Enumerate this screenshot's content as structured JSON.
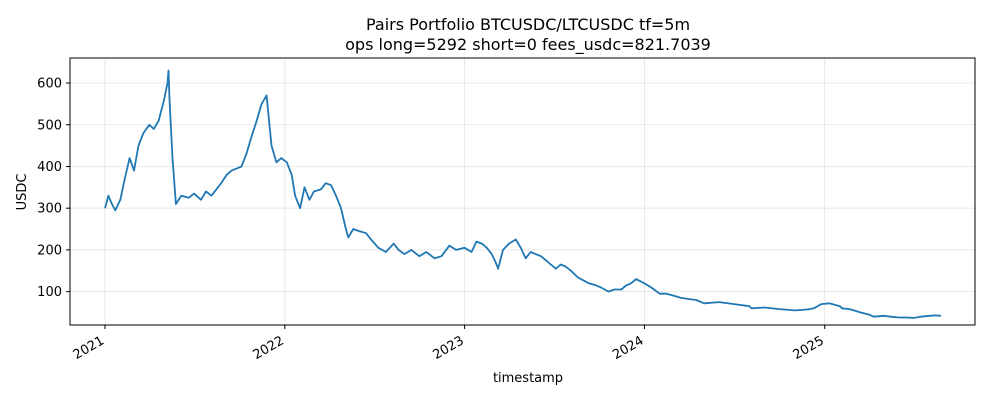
{
  "chart_data": {
    "type": "line",
    "title": "Pairs Portfolio BTCUSDC/LTCUSDC tf=5m",
    "subtitle": "ops long=5292 short=0 fees_usdc=821.7039",
    "xlabel": "timestamp",
    "ylabel": "USDC",
    "x_ticks": [
      "2021",
      "2022",
      "2023",
      "2024",
      "2025"
    ],
    "y_ticks": [
      100,
      200,
      300,
      400,
      500,
      600
    ],
    "xlim": [
      "2020-10-22",
      "2025-11-02"
    ],
    "ylim": [
      20,
      660
    ],
    "grid": true,
    "line_color": "#1f77b4",
    "series": [
      {
        "x": [
          "2021-01-01",
          "2021-01-08",
          "2021-01-15",
          "2021-01-22",
          "2021-02-01",
          "2021-02-10",
          "2021-02-20",
          "2021-03-01",
          "2021-03-10",
          "2021-03-20",
          "2021-04-01",
          "2021-04-10",
          "2021-04-20",
          "2021-05-01",
          "2021-05-08",
          "2021-05-10",
          "2021-05-12",
          "2021-05-18",
          "2021-05-25",
          "2021-06-05",
          "2021-06-20",
          "2021-07-01",
          "2021-07-15",
          "2021-07-25",
          "2021-08-05",
          "2021-08-15",
          "2021-08-25",
          "2021-09-05",
          "2021-09-15",
          "2021-09-25",
          "2021-10-05",
          "2021-10-15",
          "2021-10-25",
          "2021-11-05",
          "2021-11-15",
          "2021-11-25",
          "2021-12-05",
          "2021-12-15",
          "2021-12-25",
          "2022-01-05",
          "2022-01-15",
          "2022-01-22",
          "2022-02-01",
          "2022-02-10",
          "2022-02-20",
          "2022-03-01",
          "2022-03-15",
          "2022-03-25",
          "2022-04-05",
          "2022-04-15",
          "2022-04-25",
          "2022-05-05",
          "2022-05-10",
          "2022-05-20",
          "2022-06-01",
          "2022-06-15",
          "2022-06-25",
          "2022-07-10",
          "2022-07-25",
          "2022-08-10",
          "2022-08-20",
          "2022-09-01",
          "2022-09-15",
          "2022-10-01",
          "2022-10-15",
          "2022-11-01",
          "2022-11-15",
          "2022-12-01",
          "2022-12-15",
          "2023-01-01",
          "2023-01-15",
          "2023-01-25",
          "2023-02-05",
          "2023-02-15",
          "2023-02-25",
          "2023-03-05",
          "2023-03-10",
          "2023-03-20",
          "2023-04-01",
          "2023-04-15",
          "2023-04-25",
          "2023-05-05",
          "2023-05-15",
          "2023-05-25",
          "2023-06-05",
          "2023-06-15",
          "2023-06-25",
          "2023-07-05",
          "2023-07-15",
          "2023-07-25",
          "2023-08-05",
          "2023-08-18",
          "2023-08-25",
          "2023-09-10",
          "2023-09-25",
          "2023-10-05",
          "2023-10-20",
          "2023-11-01",
          "2023-11-15",
          "2023-11-25",
          "2023-12-05",
          "2023-12-15",
          "2024-01-01",
          "2024-01-15",
          "2024-02-01",
          "2024-02-15",
          "2024-03-01",
          "2024-03-15",
          "2024-04-01",
          "2024-04-15",
          "2024-05-01",
          "2024-06-01",
          "2024-07-01",
          "2024-08-01",
          "2024-08-05",
          "2024-09-01",
          "2024-10-01",
          "2024-11-01",
          "2024-11-15",
          "2024-12-01",
          "2024-12-10",
          "2024-12-25",
          "2025-01-10",
          "2025-02-01",
          "2025-02-05",
          "2025-02-20",
          "2025-03-01",
          "2025-03-15",
          "2025-04-01",
          "2025-04-10",
          "2025-05-01",
          "2025-05-15",
          "2025-06-01",
          "2025-06-15",
          "2025-07-01",
          "2025-07-15",
          "2025-08-01",
          "2025-08-15",
          "2025-08-25"
        ],
        "y": [
          300,
          330,
          310,
          295,
          320,
          370,
          420,
          390,
          450,
          480,
          500,
          490,
          510,
          560,
          600,
          630,
          560,
          420,
          310,
          330,
          325,
          335,
          320,
          340,
          330,
          345,
          360,
          380,
          390,
          395,
          400,
          430,
          470,
          510,
          550,
          570,
          450,
          410,
          420,
          410,
          380,
          330,
          300,
          350,
          320,
          340,
          345,
          360,
          355,
          330,
          300,
          250,
          230,
          250,
          245,
          240,
          225,
          205,
          195,
          215,
          200,
          190,
          200,
          185,
          195,
          180,
          185,
          210,
          200,
          205,
          195,
          220,
          215,
          205,
          190,
          170,
          155,
          200,
          215,
          225,
          205,
          180,
          195,
          190,
          185,
          175,
          165,
          155,
          165,
          160,
          150,
          135,
          130,
          120,
          115,
          110,
          100,
          105,
          105,
          115,
          120,
          130,
          120,
          110,
          95,
          95,
          90,
          85,
          82,
          80,
          72,
          75,
          70,
          65,
          60,
          62,
          58,
          55,
          56,
          58,
          60,
          70,
          72,
          65,
          60,
          58,
          55,
          50,
          45,
          40,
          42,
          40,
          38,
          38,
          37,
          40,
          42,
          43,
          42
        ]
      }
    ]
  }
}
